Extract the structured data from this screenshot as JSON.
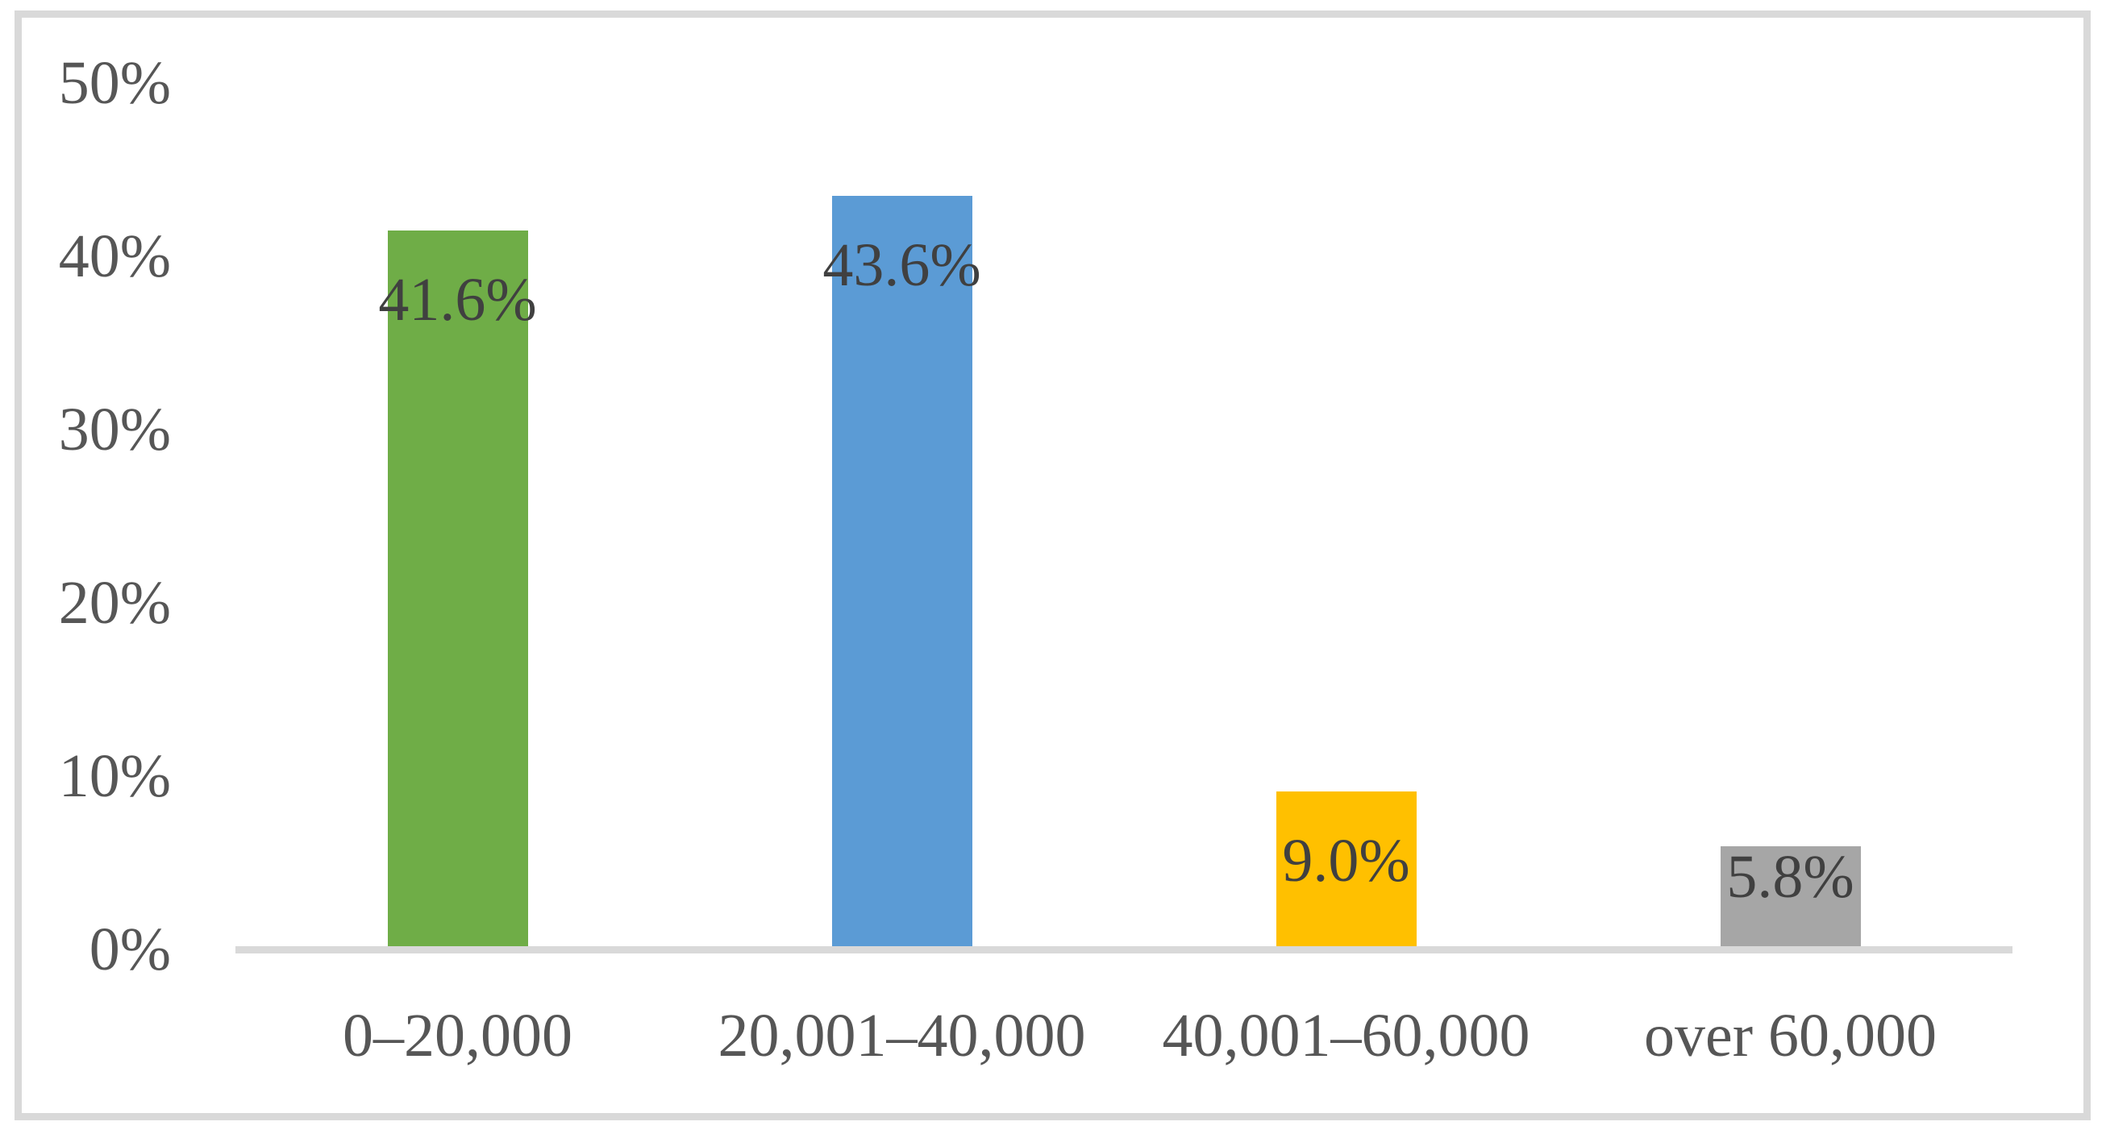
{
  "chart_data": {
    "type": "bar",
    "categories": [
      "0–20,000",
      "20,001–40,000",
      "40,001–60,000",
      "over 60,000"
    ],
    "values": [
      41.6,
      43.6,
      9.0,
      5.8
    ],
    "data_labels": [
      "41.6%",
      "43.6%",
      "9.0%",
      "5.8%"
    ],
    "series_colors": [
      "#6fad47",
      "#5b9bd5",
      "#ffc000",
      "#a6a6a6"
    ],
    "yticks": [
      "0%",
      "10%",
      "20%",
      "30%",
      "40%",
      "50%"
    ],
    "ylim": [
      0,
      50
    ],
    "title": "",
    "xlabel": "",
    "ylabel": "",
    "grid": false,
    "legend": "none",
    "colors": {
      "axis_line": "#d9d9d9",
      "frame_border": "#d9d9d9",
      "axis_label_text": "#565656",
      "data_label_text": "#404040",
      "background": "#ffffff"
    }
  }
}
